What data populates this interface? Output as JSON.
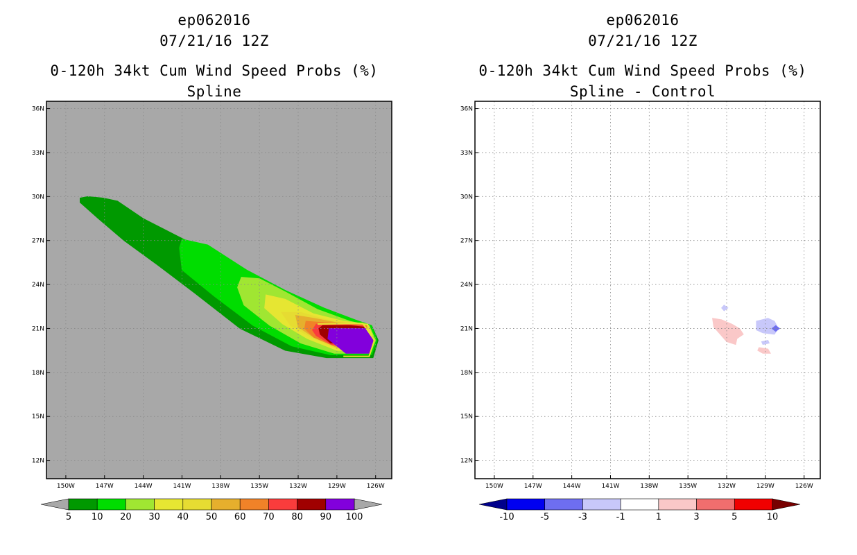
{
  "chart_data": [
    {
      "type": "heatmap",
      "storm": "ep062016",
      "date": "07/21/16 12Z",
      "title": "0-120h 34kt Cum Wind Speed Probs (%)",
      "subtitle": "Spline",
      "background": "#a8a8a8",
      "x_ticks": [
        "150W",
        "147W",
        "144W",
        "141W",
        "138W",
        "135W",
        "132W",
        "129W",
        "126W"
      ],
      "y_ticks": [
        "36N",
        "33N",
        "30N",
        "27N",
        "24N",
        "21N",
        "18N",
        "15N",
        "12N"
      ],
      "xlim": [
        -151.5,
        -124.75
      ],
      "ylim": [
        10.75,
        36.5
      ],
      "colorbar": {
        "levels": [
          "5",
          "10",
          "20",
          "30",
          "40",
          "50",
          "60",
          "70",
          "80",
          "90",
          "100"
        ],
        "colors": [
          "#009900",
          "#00dd00",
          "#a0e632",
          "#e6e632",
          "#e6dc32",
          "#e6af2d",
          "#f08228",
          "#fa3c3c",
          "#a00000",
          "#8200dc"
        ],
        "under": "#a8a8a8",
        "over": "#a8a8a8"
      },
      "regions": [
        {
          "level": "5-10",
          "color": "#009900",
          "points": [
            [
              -148.9,
              29.9
            ],
            [
              -148.3,
              30.0
            ],
            [
              -147.1,
              29.9
            ],
            [
              -146.0,
              29.7
            ],
            [
              -144.0,
              28.5
            ],
            [
              -140.0,
              26.7
            ],
            [
              -136.0,
              24.7
            ],
            [
              -132.0,
              22.9
            ],
            [
              -129.0,
              21.8
            ],
            [
              -127.3,
              21.4
            ],
            [
              -126.3,
              21.2
            ],
            [
              -125.8,
              20.2
            ],
            [
              -126.2,
              19.0
            ],
            [
              -129.8,
              19.0
            ],
            [
              -133.0,
              19.5
            ],
            [
              -136.5,
              21.0
            ],
            [
              -140.0,
              23.4
            ],
            [
              -143.0,
              25.4
            ],
            [
              -145.5,
              27.0
            ],
            [
              -147.5,
              28.5
            ],
            [
              -148.9,
              29.6
            ]
          ]
        },
        {
          "level": "10-20",
          "color": "#00dd00",
          "points": [
            [
              -141.0,
              27.1
            ],
            [
              -139.0,
              26.7
            ],
            [
              -136.0,
              25.0
            ],
            [
              -133.0,
              23.6
            ],
            [
              -130.0,
              22.4
            ],
            [
              -127.6,
              21.6
            ],
            [
              -126.3,
              21.2
            ],
            [
              -125.9,
              20.2
            ],
            [
              -126.3,
              19.2
            ],
            [
              -129.5,
              19.2
            ],
            [
              -132.5,
              19.8
            ],
            [
              -135.5,
              21.2
            ],
            [
              -138.5,
              23.2
            ],
            [
              -141.0,
              25.0
            ],
            [
              -141.2,
              26.5
            ]
          ]
        },
        {
          "level": "20-30",
          "color": "#a0e632",
          "points": [
            [
              -136.4,
              24.5
            ],
            [
              -135.0,
              24.4
            ],
            [
              -133.0,
              23.5
            ],
            [
              -130.5,
              22.3
            ],
            [
              -128.0,
              21.5
            ],
            [
              -126.5,
              21.2
            ],
            [
              -126.0,
              20.2
            ],
            [
              -126.4,
              19.3
            ],
            [
              -129.2,
              19.3
            ],
            [
              -131.8,
              20.0
            ],
            [
              -134.2,
              21.2
            ],
            [
              -136.2,
              22.6
            ],
            [
              -136.7,
              23.8
            ]
          ]
        },
        {
          "level": "30-40",
          "color": "#e6e632",
          "points": [
            [
              -134.5,
              23.3
            ],
            [
              -133.0,
              23.0
            ],
            [
              -130.8,
              22.0
            ],
            [
              -128.5,
              21.5
            ],
            [
              -126.6,
              21.3
            ],
            [
              -126.1,
              20.2
            ],
            [
              -126.5,
              19.4
            ],
            [
              -129.0,
              19.5
            ],
            [
              -131.3,
              20.3
            ],
            [
              -133.2,
              21.3
            ],
            [
              -134.6,
              22.4
            ]
          ]
        },
        {
          "level": "40-50",
          "color": "#e6dc32",
          "points": [
            [
              -133.3,
              22.1
            ],
            [
              -131.8,
              22.1
            ],
            [
              -129.8,
              21.6
            ],
            [
              -127.8,
              21.4
            ],
            [
              -126.6,
              21.2
            ],
            [
              -126.3,
              20.1
            ],
            [
              -126.7,
              19.6
            ],
            [
              -129.0,
              19.6
            ],
            [
              -131.0,
              20.4
            ],
            [
              -132.6,
              21.2
            ]
          ]
        },
        {
          "level": "50-60",
          "color": "#e6af2d",
          "points": [
            [
              -132.2,
              21.9
            ],
            [
              -130.8,
              21.7
            ],
            [
              -129.0,
              21.4
            ],
            [
              -127.0,
              21.3
            ],
            [
              -126.4,
              20.2
            ],
            [
              -126.8,
              19.7
            ],
            [
              -129.0,
              19.7
            ],
            [
              -130.8,
              20.4
            ],
            [
              -132.0,
              21.1
            ]
          ]
        },
        {
          "level": "60-70",
          "color": "#f08228",
          "points": [
            [
              -131.4,
              21.5
            ],
            [
              -130.0,
              21.4
            ],
            [
              -128.0,
              21.3
            ],
            [
              -126.7,
              21.2
            ],
            [
              -126.5,
              20.1
            ],
            [
              -126.9,
              19.8
            ],
            [
              -129.2,
              19.8
            ],
            [
              -130.8,
              20.4
            ],
            [
              -131.5,
              21.0
            ]
          ]
        },
        {
          "level": "70-80",
          "color": "#fa3c3c",
          "points": [
            [
              -130.6,
              21.3
            ],
            [
              -129.0,
              21.3
            ],
            [
              -127.0,
              21.2
            ],
            [
              -126.6,
              20.2
            ],
            [
              -127.0,
              19.9
            ],
            [
              -129.4,
              19.9
            ],
            [
              -130.6,
              20.5
            ],
            [
              -130.9,
              20.9
            ]
          ]
        },
        {
          "level": "80-90",
          "color": "#a00000",
          "points": [
            [
              -130.1,
              21.2
            ],
            [
              -128.0,
              21.2
            ],
            [
              -126.9,
              21.1
            ],
            [
              -126.7,
              20.2
            ],
            [
              -127.1,
              20.0
            ],
            [
              -129.5,
              20.0
            ],
            [
              -130.3,
              20.6
            ],
            [
              -130.4,
              21.0
            ]
          ]
        },
        {
          "level": "90-100",
          "color": "#8200dc",
          "points": [
            [
              -129.6,
              21.0
            ],
            [
              -126.8,
              21.0
            ],
            [
              -126.2,
              20.4
            ],
            [
              -126.2,
              19.8
            ],
            [
              -126.5,
              19.3
            ],
            [
              -128.3,
              19.3
            ],
            [
              -129.7,
              20.3
            ]
          ]
        }
      ],
      "colorbar_edge_contours": [
        {
          "color": "#e6e632",
          "points": [
            [
              -130.5,
              21.3
            ],
            [
              -127.0,
              21.35
            ],
            [
              -126.1,
              20.2
            ],
            [
              -126.5,
              19.1
            ],
            [
              -128.5,
              19.1
            ]
          ]
        }
      ]
    },
    {
      "type": "heatmap",
      "storm": "ep062016",
      "date": "07/21/16 12Z",
      "title": "0-120h 34kt Cum Wind Speed Probs (%)",
      "subtitle": "Spline - Control",
      "background": "#ffffff",
      "x_ticks": [
        "150W",
        "147W",
        "144W",
        "141W",
        "138W",
        "135W",
        "132W",
        "129W",
        "126W"
      ],
      "y_ticks": [
        "36N",
        "33N",
        "30N",
        "27N",
        "24N",
        "21N",
        "18N",
        "15N",
        "12N"
      ],
      "xlim": [
        -151.5,
        -124.75
      ],
      "ylim": [
        10.75,
        36.5
      ],
      "colorbar": {
        "levels": [
          "-10",
          "-5",
          "-3",
          "-1",
          "1",
          "3",
          "5",
          "10"
        ],
        "colors": [
          "#0000f0",
          "#6e6ef0",
          "#c8c8fa",
          "#ffffff",
          "#fac8c8",
          "#f06e6e",
          "#f00000"
        ],
        "under": "#00008c",
        "over": "#780000"
      },
      "regions": [
        {
          "level": "1-3",
          "color": "#fac8c8",
          "points": [
            [
              -133.1,
              21.7
            ],
            [
              -132.4,
              21.6
            ],
            [
              -131.6,
              21.3
            ],
            [
              -131.0,
              21.0
            ],
            [
              -130.7,
              20.6
            ],
            [
              -131.2,
              20.3
            ],
            [
              -131.3,
              19.9
            ],
            [
              -132.0,
              20.1
            ],
            [
              -132.6,
              20.7
            ],
            [
              -133.0,
              21.1
            ]
          ]
        },
        {
          "level": "1-3",
          "color": "#fac8c8",
          "points": [
            [
              -129.5,
              19.7
            ],
            [
              -128.8,
              19.6
            ],
            [
              -128.6,
              19.3
            ],
            [
              -129.2,
              19.3
            ],
            [
              -129.6,
              19.5
            ]
          ]
        },
        {
          "level": "-3--1",
          "color": "#c8c8fa",
          "points": [
            [
              -129.7,
              21.5
            ],
            [
              -128.8,
              21.7
            ],
            [
              -128.3,
              21.5
            ],
            [
              -128.0,
              21.0
            ],
            [
              -128.3,
              20.6
            ],
            [
              -129.2,
              20.7
            ],
            [
              -129.7,
              20.9
            ]
          ]
        },
        {
          "level": "-3--1",
          "color": "#c8c8fa",
          "points": [
            [
              -132.2,
              22.6
            ],
            [
              -131.9,
              22.4
            ],
            [
              -132.2,
              22.2
            ],
            [
              -132.4,
              22.4
            ]
          ]
        },
        {
          "level": "-3--1",
          "color": "#c8c8fa",
          "points": [
            [
              -129.3,
              20.1
            ],
            [
              -128.8,
              20.2
            ],
            [
              -128.7,
              20.0
            ],
            [
              -129.2,
              19.9
            ]
          ]
        },
        {
          "level": "-5--3",
          "color": "#6e6ef0",
          "points": [
            [
              -128.2,
              21.2
            ],
            [
              -127.9,
              21.0
            ],
            [
              -128.2,
              20.8
            ],
            [
              -128.5,
              21.0
            ]
          ]
        }
      ],
      "colorbar_edge_contours": []
    }
  ]
}
